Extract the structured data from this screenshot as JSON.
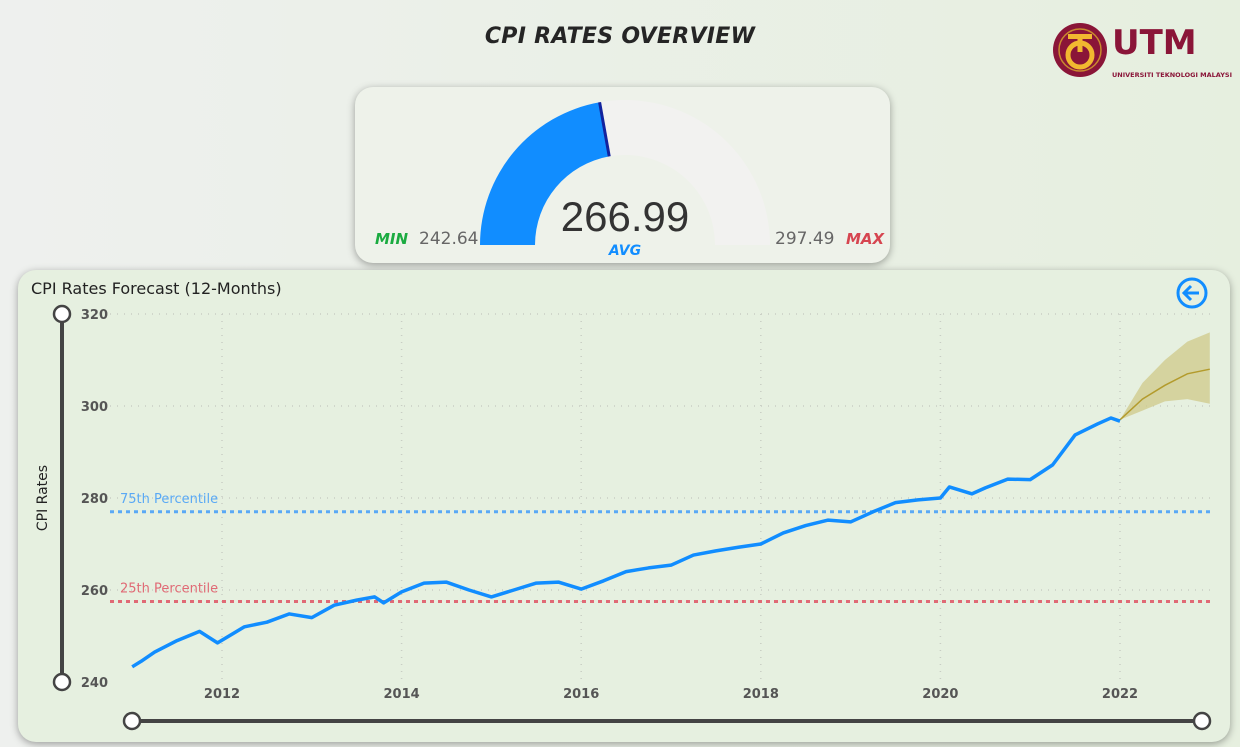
{
  "header": {
    "title": "CPI RATES OVERVIEW",
    "logo_text": "UTM",
    "logo_subtext": "UNIVERSITI TEKNOLOGI MALAYSIA"
  },
  "gauge": {
    "min_label": "MIN",
    "min_value": "242.64",
    "max_label": "MAX",
    "max_value": "297.49",
    "value": "266.99",
    "value_label": "AVG",
    "min": 242.64,
    "max": 297.49,
    "current": 266.99,
    "fill_color": "#118dff",
    "track_color": "#f2f2f0",
    "needle_color": "#12239e",
    "min_color": "#1aab40",
    "max_color": "#d64550"
  },
  "chart_data": {
    "type": "line",
    "title": "CPI Rates Forecast (12-Months)",
    "ylabel": "CPI Rates",
    "xlabel": "",
    "xlim": [
      2011,
      2023.1
    ],
    "ylim": [
      240,
      320
    ],
    "x_ticks": [
      "2012",
      "2014",
      "2016",
      "2018",
      "2020",
      "2022"
    ],
    "y_ticks": [
      "240",
      "260",
      "280",
      "300",
      "320"
    ],
    "grid": true,
    "series": [
      {
        "color": "#118dff",
        "x": [
          2011.0,
          2011.1,
          2011.25,
          2011.5,
          2011.75,
          2011.95,
          2012.25,
          2012.5,
          2012.75,
          2013.0,
          2013.25,
          2013.5,
          2013.7,
          2013.8,
          2014.0,
          2014.25,
          2014.5,
          2014.75,
          2015.0,
          2015.25,
          2015.5,
          2015.75,
          2016.0,
          2016.25,
          2016.5,
          2016.75,
          2017.0,
          2017.25,
          2017.5,
          2017.75,
          2018.0,
          2018.25,
          2018.5,
          2018.75,
          2019.0,
          2019.25,
          2019.5,
          2019.75,
          2020.0,
          2020.1,
          2020.35,
          2020.5,
          2020.75,
          2021.0,
          2021.25,
          2021.5,
          2021.75,
          2021.9,
          2022.0
        ],
        "y": [
          243.3,
          244.5,
          246.5,
          249,
          251,
          248.5,
          252,
          253,
          254.8,
          254,
          256.7,
          257.8,
          258.5,
          257.2,
          259.6,
          261.5,
          261.7,
          260,
          258.5,
          260,
          261.5,
          261.7,
          260.2,
          262,
          264,
          264.8,
          265.4,
          267.6,
          268.5,
          269.3,
          270,
          272.4,
          274,
          275.2,
          274.8,
          277,
          279,
          279.6,
          280,
          282.4,
          280.9,
          282.2,
          284.1,
          284,
          287.2,
          293.7,
          296.1,
          297.4,
          296.7
        ]
      }
    ],
    "forecast": {
      "color": "#b39b2c",
      "band_color": "#cfc98a",
      "x": [
        2022.0,
        2022.25,
        2022.5,
        2022.75,
        2023.0
      ],
      "y": [
        297,
        301.5,
        304.5,
        307,
        308
      ],
      "upper": [
        297,
        305,
        310,
        314,
        316
      ],
      "lower": [
        297,
        299,
        301,
        301.5,
        300.5
      ]
    },
    "reference_lines": [
      {
        "label": "75th Percentile",
        "value": 277,
        "color": "#5aa9f5"
      },
      {
        "label": "25th Percentile",
        "value": 257.5,
        "color": "#e06a75"
      }
    ]
  },
  "controls": {
    "back_icon": "arrow-left-circle-icon"
  }
}
